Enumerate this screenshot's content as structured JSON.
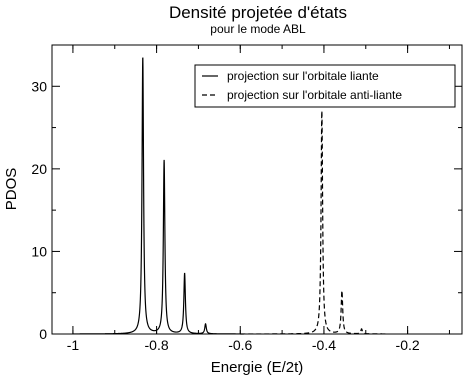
{
  "chart_data": {
    "type": "line",
    "title": "Densité projetée d'états",
    "subtitle": "pour le mode ABL",
    "xlabel": "Energie (E/2t)",
    "ylabel": "PDOS",
    "xlim": [
      -1.05,
      -0.07
    ],
    "ylim": [
      0,
      35
    ],
    "x_ticks": [
      -1,
      -0.8,
      -0.6,
      -0.4,
      -0.2
    ],
    "x_tick_labels": [
      "-1",
      "-0.8",
      "-0.6",
      "-0.4",
      "-0.2"
    ],
    "y_ticks": [
      0,
      10,
      20,
      30
    ],
    "y_tick_labels": [
      "0",
      "10",
      "20",
      "30"
    ],
    "grid": false,
    "legend_position": "top-right",
    "series": [
      {
        "name": "projection sur l'orbitale liante",
        "line_style": "solid",
        "color": "#000000",
        "peaks": [
          {
            "x": -0.833,
            "y": 33.5
          },
          {
            "x": -0.782,
            "y": 21.0
          },
          {
            "x": -0.733,
            "y": 7.3
          },
          {
            "x": -0.683,
            "y": 1.2
          }
        ],
        "x_range": [
          -1.0,
          -0.6
        ]
      },
      {
        "name": "projection sur l'orbitale anti-liante",
        "line_style": "dashed",
        "color": "#000000",
        "peaks": [
          {
            "x": -0.405,
            "y": 27.0
          },
          {
            "x": -0.357,
            "y": 5.2
          },
          {
            "x": -0.31,
            "y": 0.6
          }
        ],
        "x_range": [
          -0.6,
          -0.25
        ]
      }
    ]
  }
}
